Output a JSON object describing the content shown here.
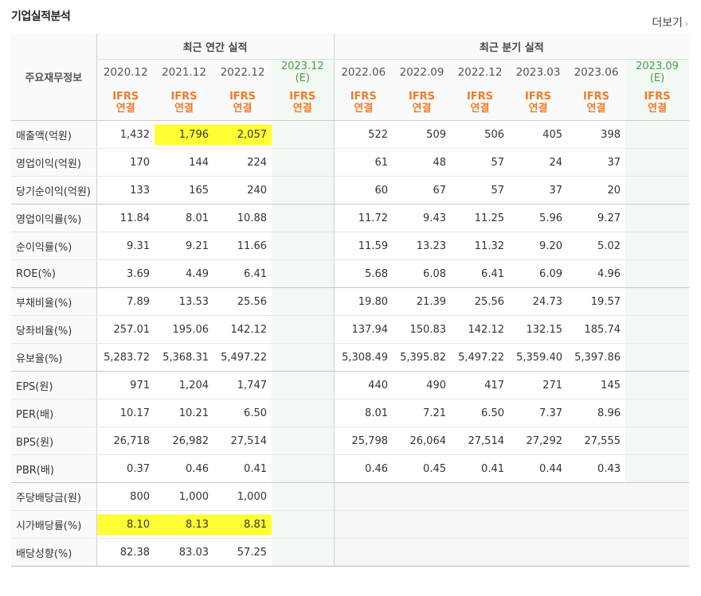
{
  "header": {
    "title": "기업실적분석",
    "more_label": "더보기",
    "more_icon": "chevron-right-icon"
  },
  "table": {
    "label_header": "주요재무정보",
    "annual_group": "최근 연간 실적",
    "quarter_group": "최근 분기 실적",
    "annual_cols": [
      {
        "date": "2020.12",
        "ifrs": "IFRS",
        "type": "연결",
        "est": ""
      },
      {
        "date": "2021.12",
        "ifrs": "IFRS",
        "type": "연결",
        "est": ""
      },
      {
        "date": "2022.12",
        "ifrs": "IFRS",
        "type": "연결",
        "est": ""
      },
      {
        "date": "2023.12",
        "ifrs": "IFRS",
        "type": "연결",
        "est": "(E)"
      }
    ],
    "quarter_cols": [
      {
        "date": "2022.06",
        "ifrs": "IFRS",
        "type": "연결",
        "est": ""
      },
      {
        "date": "2022.09",
        "ifrs": "IFRS",
        "type": "연결",
        "est": ""
      },
      {
        "date": "2022.12",
        "ifrs": "IFRS",
        "type": "연결",
        "est": ""
      },
      {
        "date": "2023.03",
        "ifrs": "IFRS",
        "type": "연결",
        "est": ""
      },
      {
        "date": "2023.06",
        "ifrs": "IFRS",
        "type": "연결",
        "est": ""
      },
      {
        "date": "2023.09",
        "ifrs": "IFRS",
        "type": "연결",
        "est": "(E)"
      }
    ],
    "rows": [
      {
        "label": "매출액(억원)",
        "a": [
          "1,432",
          "1,796",
          "2,057",
          ""
        ],
        "q": [
          "522",
          "509",
          "506",
          "405",
          "398",
          ""
        ]
      },
      {
        "label": "영업이익(억원)",
        "a": [
          "170",
          "144",
          "224",
          ""
        ],
        "q": [
          "61",
          "48",
          "57",
          "24",
          "37",
          ""
        ]
      },
      {
        "label": "당기순이익(억원)",
        "a": [
          "133",
          "165",
          "240",
          ""
        ],
        "q": [
          "60",
          "67",
          "57",
          "37",
          "20",
          ""
        ]
      },
      {
        "label": "영업이익률(%)",
        "a": [
          "11.84",
          "8.01",
          "10.88",
          ""
        ],
        "q": [
          "11.72",
          "9.43",
          "11.25",
          "5.96",
          "9.27",
          ""
        ]
      },
      {
        "label": "순이익률(%)",
        "a": [
          "9.31",
          "9.21",
          "11.66",
          ""
        ],
        "q": [
          "11.59",
          "13.23",
          "11.32",
          "9.20",
          "5.02",
          ""
        ]
      },
      {
        "label": "ROE(%)",
        "a": [
          "3.69",
          "4.49",
          "6.41",
          ""
        ],
        "q": [
          "5.68",
          "6.08",
          "6.41",
          "6.09",
          "4.96",
          ""
        ]
      },
      {
        "label": "부채비율(%)",
        "a": [
          "7.89",
          "13.53",
          "25.56",
          ""
        ],
        "q": [
          "19.80",
          "21.39",
          "25.56",
          "24.73",
          "19.57",
          ""
        ]
      },
      {
        "label": "당좌비율(%)",
        "a": [
          "257.01",
          "195.06",
          "142.12",
          ""
        ],
        "q": [
          "137.94",
          "150.83",
          "142.12",
          "132.15",
          "185.74",
          ""
        ]
      },
      {
        "label": "유보율(%)",
        "a": [
          "5,283.72",
          "5,368.31",
          "5,497.22",
          ""
        ],
        "q": [
          "5,308.49",
          "5,395.82",
          "5,497.22",
          "5,359.40",
          "5,397.86",
          ""
        ]
      },
      {
        "label": "EPS(원)",
        "a": [
          "971",
          "1,204",
          "1,747",
          ""
        ],
        "q": [
          "440",
          "490",
          "417",
          "271",
          "145",
          ""
        ]
      },
      {
        "label": "PER(배)",
        "a": [
          "10.17",
          "10.21",
          "6.50",
          ""
        ],
        "q": [
          "8.01",
          "7.21",
          "6.50",
          "7.37",
          "8.96",
          ""
        ]
      },
      {
        "label": "BPS(원)",
        "a": [
          "26,718",
          "26,982",
          "27,514",
          ""
        ],
        "q": [
          "25,798",
          "26,064",
          "27,514",
          "27,292",
          "27,555",
          ""
        ]
      },
      {
        "label": "PBR(배)",
        "a": [
          "0.37",
          "0.46",
          "0.41",
          ""
        ],
        "q": [
          "0.46",
          "0.45",
          "0.41",
          "0.44",
          "0.43",
          ""
        ]
      },
      {
        "label": "주당배당금(원)",
        "a": [
          "800",
          "1,000",
          "1,000",
          ""
        ],
        "q": [
          "",
          "",
          "",
          "",
          "",
          ""
        ]
      },
      {
        "label": "시가배당률(%)",
        "a": [
          "8.10",
          "8.13",
          "8.81",
          ""
        ],
        "q": [
          "",
          "",
          "",
          "",
          "",
          ""
        ]
      },
      {
        "label": "배당성향(%)",
        "a": [
          "82.38",
          "83.03",
          "57.25",
          ""
        ],
        "q": [
          "",
          "",
          "",
          "",
          "",
          ""
        ]
      }
    ],
    "highlight_color": "#ffff33",
    "ifrs_color": "#f07c2b",
    "estimate_color": "#4a9b4a"
  }
}
